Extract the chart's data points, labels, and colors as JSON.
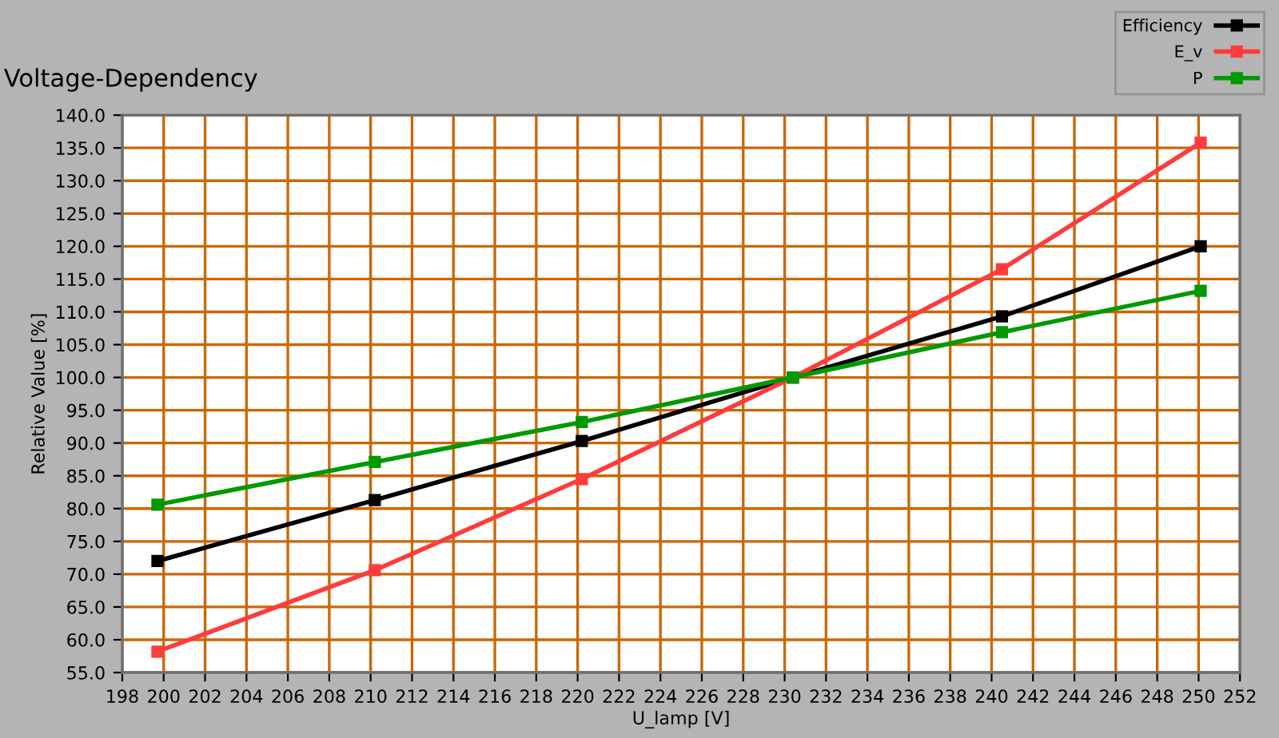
{
  "chart_data": {
    "type": "line",
    "title": "Voltage-Dependency",
    "xlabel": "U_lamp [V]",
    "ylabel": "Relative Value [%]",
    "x": [
      199.7,
      210.2,
      220.2,
      230.4,
      240.5,
      250.1
    ],
    "series": [
      {
        "name": "Efficiency",
        "color": "#000000",
        "values": [
          72.0,
          81.3,
          90.3,
          100.0,
          109.3,
          120.0
        ]
      },
      {
        "name": "E_v",
        "color": "#ff3b3b",
        "values": [
          58.2,
          70.6,
          84.5,
          100.0,
          116.5,
          135.8
        ]
      },
      {
        "name": "P",
        "color": "#009900",
        "values": [
          80.6,
          87.1,
          93.2,
          100.0,
          106.9,
          113.2
        ]
      }
    ],
    "xlim": [
      198,
      252
    ],
    "ylim": [
      55,
      140
    ],
    "xticks": [
      198,
      200,
      202,
      204,
      206,
      208,
      210,
      212,
      214,
      216,
      218,
      220,
      222,
      224,
      226,
      228,
      230,
      232,
      234,
      236,
      238,
      240,
      242,
      244,
      246,
      248,
      250,
      252
    ],
    "yticks": [
      {
        "value": 55,
        "label": "55.0"
      },
      {
        "value": 60,
        "label": "60.0"
      },
      {
        "value": 65,
        "label": "65.0"
      },
      {
        "value": 70,
        "label": "70.0"
      },
      {
        "value": 75,
        "label": "75.0"
      },
      {
        "value": 80,
        "label": "80.0"
      },
      {
        "value": 85,
        "label": "85.0"
      },
      {
        "value": 90,
        "label": "90.0"
      },
      {
        "value": 95,
        "label": "95.0"
      },
      {
        "value": 100,
        "label": "100.0"
      },
      {
        "value": 105,
        "label": "105.0"
      },
      {
        "value": 110,
        "label": "110.0"
      },
      {
        "value": 115,
        "label": "115.0"
      },
      {
        "value": 120,
        "label": "120.0"
      },
      {
        "value": 125,
        "label": "125.0"
      },
      {
        "value": 130,
        "label": "130.0"
      },
      {
        "value": 135,
        "label": "135.0"
      },
      {
        "value": 140,
        "label": "140.0"
      }
    ],
    "grid": true,
    "legend": "top right",
    "marker": "square",
    "line_style": "solid"
  }
}
